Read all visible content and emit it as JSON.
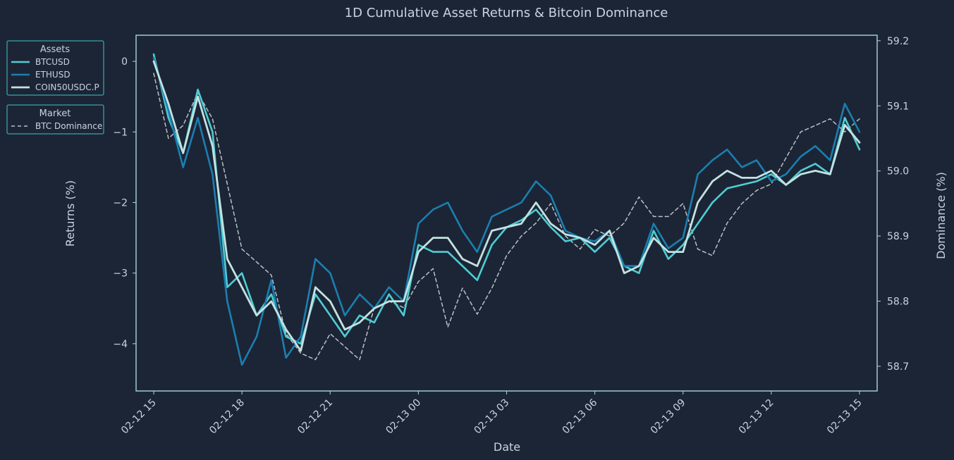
{
  "colors": {
    "background": "#1c2535",
    "frame": "#a7d8d8",
    "text": "#c7d4e0",
    "legend_border": "#3fc2c9"
  },
  "chart_data": {
    "type": "line",
    "title": "1D Cumulative Asset Returns & Bitcoin Dominance",
    "xlabel": "Date",
    "ylabel": "Returns (%)",
    "y2label": "Dominance (%)",
    "x_range_hours": [
      -0.6,
      24.6
    ],
    "ylim": [
      -4.67,
      0.37
    ],
    "y2lim": [
      58.662,
      59.2085
    ],
    "y_ticks": [
      0,
      -1,
      -2,
      -3,
      -4
    ],
    "y_tick_labels": [
      "0",
      "−1",
      "−2",
      "−3",
      "−4"
    ],
    "y2_ticks": [
      59.2,
      59.1,
      59.0,
      58.9,
      58.8,
      58.7
    ],
    "y2_tick_labels": [
      "59.2",
      "59.1",
      "59.0",
      "58.9",
      "58.8",
      "58.7"
    ],
    "x_ticks_hours": [
      0,
      3,
      6,
      9,
      12,
      15,
      18,
      21,
      24
    ],
    "x_tick_labels": [
      "02-12 15",
      "02-12 18",
      "02-12 21",
      "02-13 00",
      "02-13 03",
      "02-13 06",
      "02-13 09",
      "02-13 12",
      "02-13 15"
    ],
    "x_hours": [
      0,
      0.5,
      1,
      1.5,
      2,
      2.5,
      3,
      3.5,
      4,
      4.5,
      5,
      5.5,
      6,
      6.5,
      7,
      7.5,
      8,
      8.5,
      9,
      9.5,
      10,
      10.5,
      11,
      11.5,
      12,
      12.5,
      13,
      13.5,
      14,
      14.5,
      15,
      15.5,
      16,
      16.5,
      17,
      17.5,
      18,
      18.5,
      19,
      19.5,
      20,
      20.5,
      21,
      21.5,
      22,
      22.5,
      23,
      23.5,
      24
    ],
    "legend_assets_title": "Assets",
    "legend_market_title": "Market",
    "series": [
      {
        "name": "BTCUSD",
        "axis": "left",
        "color": "#4ecdd4",
        "width": 2.6,
        "dash": "",
        "values": [
          0.1,
          -0.8,
          -1.3,
          -0.4,
          -1.0,
          -3.2,
          -3.0,
          -3.6,
          -3.3,
          -3.9,
          -4.0,
          -3.3,
          -3.6,
          -3.9,
          -3.6,
          -3.7,
          -3.3,
          -3.6,
          -2.6,
          -2.7,
          -2.7,
          -2.9,
          -3.1,
          -2.6,
          -2.35,
          -2.25,
          -2.1,
          -2.35,
          -2.55,
          -2.5,
          -2.7,
          -2.5,
          -2.9,
          -3.0,
          -2.4,
          -2.8,
          -2.6,
          -2.3,
          -2.0,
          -1.8,
          -1.75,
          -1.7,
          -1.6,
          -1.75,
          -1.55,
          -1.45,
          -1.6,
          -0.8,
          -1.25
        ]
      },
      {
        "name": "ETHUSD",
        "axis": "left",
        "color": "#1a7fb0",
        "width": 2.6,
        "dash": "",
        "values": [
          0.05,
          -0.7,
          -1.5,
          -0.8,
          -1.6,
          -3.4,
          -4.3,
          -3.9,
          -3.1,
          -4.2,
          -3.9,
          -2.8,
          -3.0,
          -3.6,
          -3.3,
          -3.5,
          -3.2,
          -3.4,
          -2.3,
          -2.1,
          -2.0,
          -2.4,
          -2.7,
          -2.2,
          -2.1,
          -2.0,
          -1.7,
          -1.9,
          -2.4,
          -2.5,
          -2.55,
          -2.4,
          -2.9,
          -2.9,
          -2.3,
          -2.65,
          -2.5,
          -1.6,
          -1.4,
          -1.25,
          -1.5,
          -1.4,
          -1.7,
          -1.6,
          -1.35,
          -1.2,
          -1.4,
          -0.6,
          -1.0
        ]
      },
      {
        "name": "COIN50USDC.P",
        "axis": "left",
        "color": "#c3e2e2",
        "width": 2.8,
        "dash": "",
        "values": [
          0.0,
          -0.6,
          -1.3,
          -0.5,
          -1.2,
          -2.8,
          -3.2,
          -3.6,
          -3.4,
          -3.8,
          -4.1,
          -3.2,
          -3.4,
          -3.8,
          -3.7,
          -3.5,
          -3.4,
          -3.4,
          -2.7,
          -2.5,
          -2.5,
          -2.8,
          -2.9,
          -2.4,
          -2.35,
          -2.3,
          -2.0,
          -2.3,
          -2.45,
          -2.5,
          -2.6,
          -2.4,
          -3.0,
          -2.9,
          -2.5,
          -2.7,
          -2.7,
          -2.0,
          -1.7,
          -1.55,
          -1.65,
          -1.65,
          -1.55,
          -1.75,
          -1.6,
          -1.55,
          -1.6,
          -0.9,
          -1.15
        ]
      },
      {
        "name": "BTC Dominance",
        "axis": "right",
        "color": "#b8c0c8",
        "width": 1.5,
        "dash": "5,4",
        "values": [
          59.15,
          59.05,
          59.07,
          59.12,
          59.08,
          58.98,
          58.88,
          58.86,
          58.84,
          58.75,
          58.72,
          58.71,
          58.75,
          58.73,
          58.71,
          58.79,
          58.8,
          58.79,
          58.83,
          58.85,
          58.76,
          58.82,
          58.78,
          58.82,
          58.87,
          58.9,
          58.92,
          58.95,
          58.9,
          58.88,
          58.91,
          58.9,
          58.92,
          58.96,
          58.93,
          58.93,
          58.95,
          58.88,
          58.87,
          58.92,
          58.95,
          58.97,
          58.98,
          59.02,
          59.06,
          59.07,
          59.08,
          59.06,
          59.08
        ]
      }
    ]
  }
}
